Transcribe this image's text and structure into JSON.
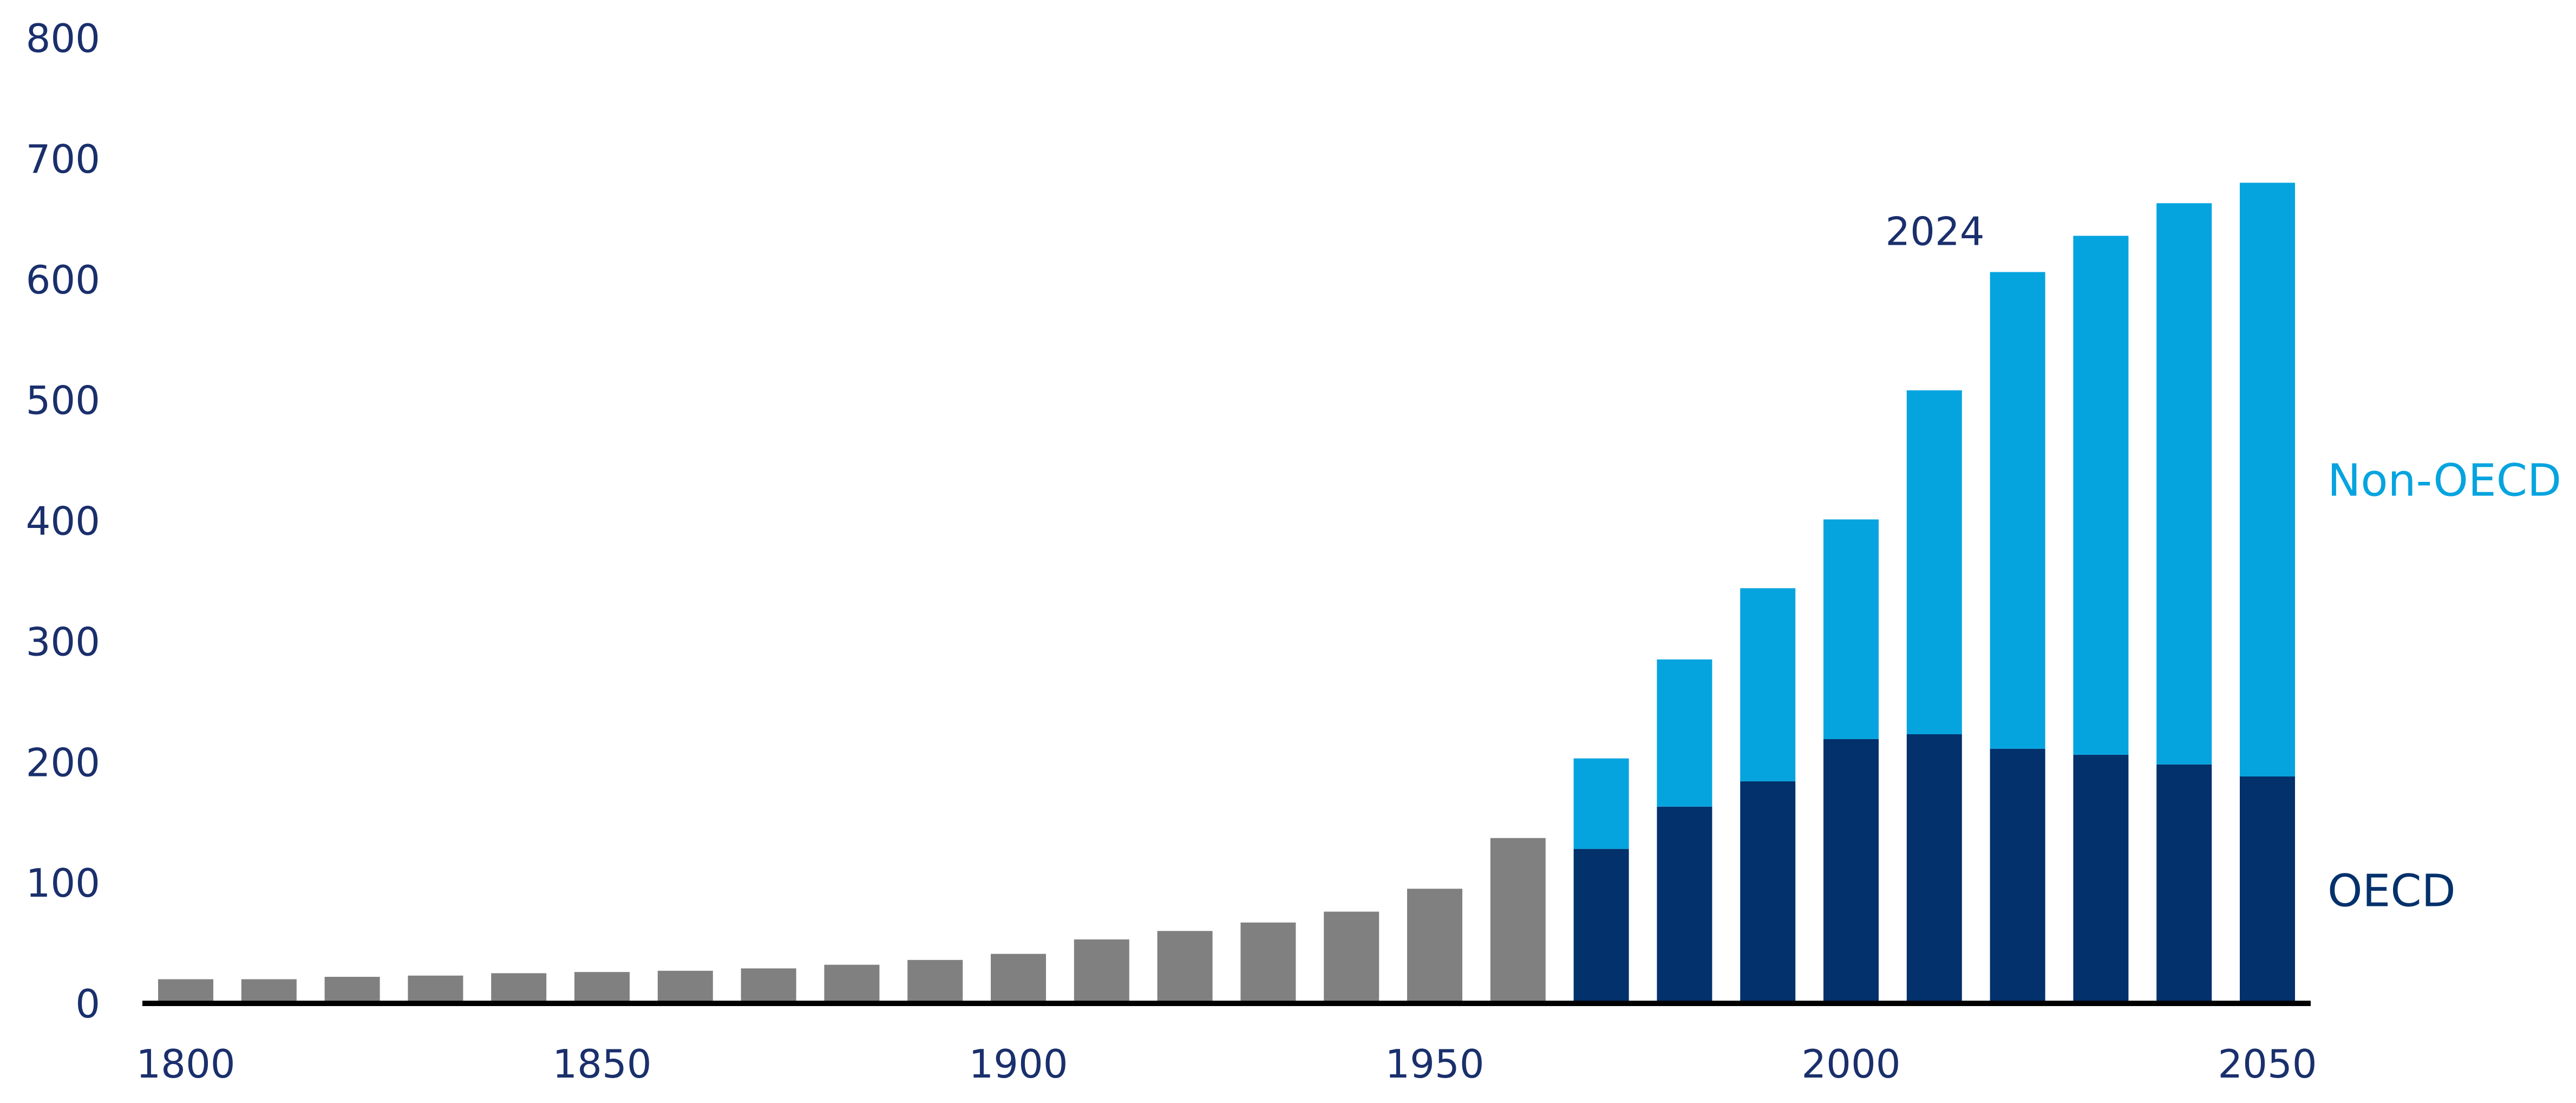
{
  "chart_data": {
    "type": "bar",
    "stacked": true,
    "x": [
      1800,
      1810,
      1820,
      1830,
      1840,
      1850,
      1860,
      1870,
      1880,
      1890,
      1900,
      1910,
      1920,
      1930,
      1940,
      1950,
      1960,
      1970,
      1980,
      1990,
      2000,
      2010,
      2020,
      2030,
      2040,
      2050
    ],
    "series": [
      {
        "color": "#808080",
        "values": [
          20,
          20,
          22,
          23,
          25,
          26,
          27,
          29,
          32,
          36,
          41,
          53,
          60,
          67,
          76,
          95,
          137,
          null,
          null,
          null,
          null,
          null,
          null,
          null,
          null,
          null
        ]
      },
      {
        "name": "OECD",
        "color": "#03316b",
        "values": [
          null,
          null,
          null,
          null,
          null,
          null,
          null,
          null,
          null,
          null,
          null,
          null,
          null,
          null,
          null,
          null,
          null,
          128,
          163,
          184,
          219,
          223,
          211,
          206,
          198,
          188
        ]
      },
      {
        "name": "Non-OECD",
        "color": "#06a4df",
        "values": [
          null,
          null,
          null,
          null,
          null,
          null,
          null,
          null,
          null,
          null,
          null,
          null,
          null,
          null,
          null,
          null,
          null,
          75,
          122,
          160,
          182,
          285,
          395,
          430,
          465,
          492
        ]
      }
    ],
    "y_ticks": [
      "0",
      "100",
      "200",
      "300",
      "400",
      "500",
      "600",
      "700",
      "800"
    ],
    "x_ticks": [
      "1800",
      "1850",
      "1900",
      "1950",
      "2000",
      "2050"
    ],
    "x_tick_values": [
      1800,
      1850,
      1900,
      1950,
      2000,
      2050
    ],
    "ylim": [
      0,
      800
    ],
    "grid": false,
    "annotations": [
      {
        "text": "2024",
        "x": 2020
      }
    ],
    "text_color": "#1a2f6c",
    "axis_color": "#000000"
  }
}
